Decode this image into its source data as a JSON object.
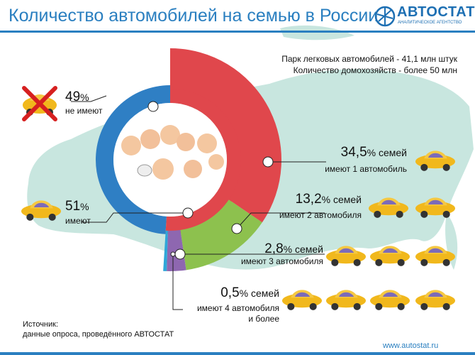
{
  "title": "Количество автомобилей на семью в России",
  "logo": {
    "name": "АВТОСТАТ",
    "tagline": "АНАЛИТИЧЕСКОЕ АГЕНТСТВО"
  },
  "header_stats": {
    "line1": "Парк легковых автомобилей - 41,1 млн штук",
    "line2": "Количество домохозяйств - более 50 млн"
  },
  "source": {
    "label": "Источник:",
    "text": "данные опроса, проведённого АВТОСТАТ"
  },
  "url": "www.autostat.ru",
  "labels": {
    "no_car": {
      "pct": "49",
      "unit": "%",
      "sub": "не имеют"
    },
    "has_car": {
      "pct": "51",
      "unit": "%",
      "sub": "имеют"
    },
    "one_car": {
      "pct": "34,5",
      "unit": "% семей",
      "sub": "имеют 1 автомобиль"
    },
    "two_cars": {
      "pct": "13,2",
      "unit": "% семей",
      "sub": "имеют 2 автомобиля"
    },
    "three_cars": {
      "pct": "2,8",
      "unit": "% семей",
      "sub": "имеют 3 автомобиля"
    },
    "four_cars": {
      "pct": "0,5",
      "unit": "% семей",
      "sub1": "имеют 4 автомобиля",
      "sub2": "и более"
    }
  },
  "colors": {
    "accent": "#2a7fc0",
    "no_car": "#2f7fc4",
    "one_car": "#e0474c",
    "two_cars": "#8dc14e",
    "three_cars": "#8e67b0",
    "four_cars": "#2fa7d8",
    "map": "#c8e6df",
    "car_body": "#f1b81c"
  },
  "chart_data": {
    "type": "pie",
    "inner": {
      "categories": [
        "не имеют",
        "имеют"
      ],
      "values": [
        49,
        51
      ]
    },
    "outer": {
      "categories": [
        "имеют 1 автомобиль",
        "имеют 2 автомобиля",
        "имеют 3 автомобиля",
        "имеют 4 автомобиля и более"
      ],
      "values": [
        34.5,
        13.2,
        2.8,
        0.5
      ]
    },
    "cars_per_row": [
      1,
      2,
      3,
      4
    ]
  }
}
